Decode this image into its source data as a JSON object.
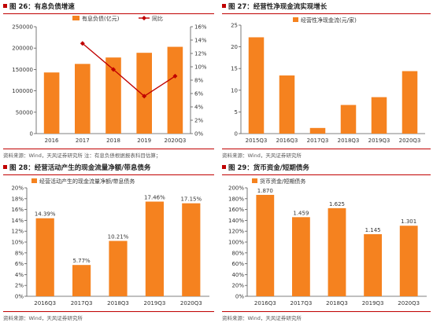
{
  "colors": {
    "bar": "#f5821f",
    "line": "#c00000",
    "axis": "#595959",
    "grid": "#bfbfbf",
    "title_rule": "#c00000"
  },
  "panels": [
    {
      "title": "图 26：有息负债增速",
      "source": "资料来源：Wind，天风证券研究所    注：有息负债根据报表科目估算；",
      "chart_data": {
        "type": "bar",
        "categories": [
          "2016",
          "2017",
          "2018",
          "2019",
          "2020Q3"
        ],
        "series": [
          {
            "name": "有息负债(亿元)",
            "kind": "bar",
            "axis": "left",
            "values": [
              143000,
              163000,
              178000,
              189000,
              203000
            ]
          },
          {
            "name": "同比",
            "kind": "line",
            "axis": "right",
            "values": [
              null,
              13.5,
              9.6,
              5.6,
              8.6
            ]
          }
        ],
        "ylim": [
          0,
          250000
        ],
        "yticks": [
          0,
          50000,
          100000,
          150000,
          200000,
          250000
        ],
        "ytick_labels": [
          "0",
          "50000",
          "100000",
          "150000",
          "200000",
          "250000"
        ],
        "y2lim": [
          0,
          16
        ],
        "y2ticks": [
          0,
          2,
          4,
          6,
          8,
          10,
          12,
          14,
          16
        ],
        "y2tick_labels": [
          "0%",
          "2%",
          "4%",
          "6%",
          "8%",
          "10%",
          "12%",
          "14%",
          "16%"
        ],
        "grid": false,
        "legend": "top"
      }
    },
    {
      "title": "图 27：经营性净现金流实现增长",
      "source": "资料来源：Wind，天风证券研究所",
      "chart_data": {
        "type": "bar",
        "categories": [
          "2015Q3",
          "2016Q3",
          "2017Q3",
          "2018Q3",
          "2019Q3",
          "2020Q3"
        ],
        "series": [
          {
            "name": "经营性净现金流(元/家)",
            "kind": "bar",
            "values": [
              22.2,
              13.4,
              1.3,
              6.6,
              8.4,
              14.4
            ]
          }
        ],
        "ylim": [
          0,
          25
        ],
        "yticks": [
          0,
          5,
          10,
          15,
          20,
          25
        ],
        "ytick_labels": [
          "0",
          "5",
          "10",
          "15",
          "20",
          "25"
        ],
        "grid": false,
        "legend": "top-left"
      }
    },
    {
      "title": "图 28：经营活动产生的现金流量净额/带息债务",
      "source": "资料来源：Wind，天风证券研究所",
      "chart_data": {
        "type": "bar",
        "categories": [
          "2016Q3",
          "2017Q3",
          "2018Q3",
          "2019Q3",
          "2020Q3"
        ],
        "series": [
          {
            "name": "经营活动产生的现金流量净额/带息债务",
            "kind": "bar",
            "values": [
              14.39,
              5.77,
              10.21,
              17.46,
              17.15
            ]
          }
        ],
        "data_labels": [
          "14.39%",
          "5.77%",
          "10.21%",
          "17.46%",
          "17.15%"
        ],
        "ylim": [
          0,
          20
        ],
        "yticks": [
          0,
          2,
          4,
          6,
          8,
          10,
          12,
          14,
          16,
          18,
          20
        ],
        "ytick_labels": [
          "0%",
          "2%",
          "4%",
          "6%",
          "8%",
          "10%",
          "12%",
          "14%",
          "16%",
          "18%",
          "20%"
        ],
        "grid": false,
        "legend": "top-left"
      }
    },
    {
      "title": "图 29：货币资金/短期债务",
      "source": "资料来源：Wind，天风证券研究所",
      "chart_data": {
        "type": "bar",
        "categories": [
          "2016Q3",
          "2017Q3",
          "2018Q3",
          "2019Q3",
          "2020Q3"
        ],
        "series": [
          {
            "name": "货币资金/短期债务",
            "kind": "bar",
            "values": [
              1.87,
              1.459,
              1.625,
              1.145,
              1.301
            ]
          }
        ],
        "data_labels": [
          "1.870",
          "1.459",
          "1.625",
          "1.145",
          "1.301"
        ],
        "ylim": [
          0,
          2
        ],
        "yticks": [
          0,
          0.2,
          0.4,
          0.6,
          0.8,
          1.0,
          1.2,
          1.4,
          1.6,
          1.8,
          2.0
        ],
        "ytick_labels": [
          "0%",
          "20%",
          "40%",
          "60%",
          "80%",
          "100%",
          "120%",
          "140%",
          "160%",
          "180%",
          "200%"
        ],
        "grid": false,
        "legend": "top-left"
      }
    }
  ]
}
